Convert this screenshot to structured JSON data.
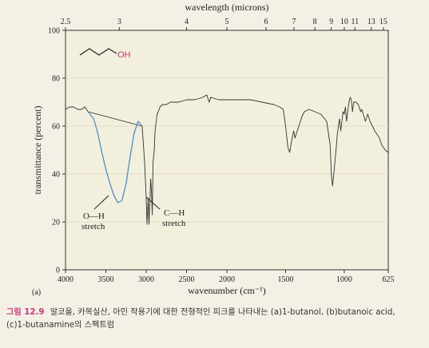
{
  "chart_data": {
    "type": "line",
    "top_axis_label": "wavelength (microns)",
    "xlabel": "wavenumber (cm⁻¹)",
    "ylabel": "transmittance (percent)",
    "panel_label": "(a)",
    "molecule_label": "OH",
    "x_ticks": [
      4000,
      3500,
      3000,
      2500,
      2000,
      1500,
      1000,
      625
    ],
    "x_tick_labels": [
      "4000",
      "3500",
      "3000",
      "2500",
      "2000",
      "1500",
      "1000",
      "625"
    ],
    "top_ticks": [
      2.5,
      3,
      4,
      5,
      6,
      7,
      8,
      9,
      10,
      11,
      13,
      15
    ],
    "top_tick_labels": [
      "2.5",
      "3",
      "4",
      "5",
      "6",
      "7",
      "8",
      "9",
      "10",
      "11",
      "13",
      "15"
    ],
    "y_ticks": [
      0,
      20,
      40,
      60,
      80,
      100
    ],
    "y_tick_labels": [
      "0",
      "20",
      "40",
      "60",
      "80",
      "100"
    ],
    "xlim": [
      4000,
      625
    ],
    "ylim": [
      0,
      100
    ],
    "annotations": [
      {
        "lines": [
          "O—H",
          "stretch"
        ],
        "x": 3350,
        "y": 28
      },
      {
        "lines": [
          "C—H",
          "stretch"
        ],
        "x": 2920,
        "y": 27
      }
    ],
    "series": [
      {
        "color": "#4a8fcf",
        "x": [
          3720,
          3650,
          3600,
          3550,
          3500,
          3450,
          3400,
          3350,
          3300,
          3250,
          3200,
          3150,
          3100,
          3050
        ],
        "y": [
          66,
          63,
          57,
          49,
          42,
          36,
          31,
          28,
          29,
          36,
          47,
          57,
          62,
          60
        ]
      },
      {
        "color": "#333333",
        "x": [
          4000,
          3950,
          3900,
          3850,
          3800,
          3760,
          3720,
          3050,
          3020,
          3000,
          2990,
          2975,
          2965,
          2955,
          2945,
          2935,
          2925,
          2915,
          2900,
          2890,
          2875,
          2865,
          2850,
          2830,
          2800,
          2750,
          2700,
          2600,
          2500,
          2400,
          2300,
          2250,
          2230,
          2220,
          2200,
          2100,
          2000,
          1900,
          1800,
          1700,
          1600,
          1550,
          1520,
          1500,
          1480,
          1465,
          1455,
          1440,
          1430,
          1420,
          1400,
          1380,
          1360,
          1340,
          1300,
          1250,
          1200,
          1150,
          1120,
          1110,
          1100,
          1085,
          1070,
          1060,
          1050,
          1040,
          1030,
          1020,
          1010,
          1000,
          990,
          980,
          970,
          960,
          950,
          940,
          930,
          920,
          900,
          880,
          860,
          850,
          820,
          800,
          780,
          760,
          740,
          700,
          680,
          650,
          625
        ],
        "y": [
          67,
          68,
          68,
          67,
          67,
          68,
          66,
          60,
          45,
          30,
          19,
          30,
          19,
          28,
          38,
          33,
          23,
          45,
          50,
          58,
          62,
          65,
          66,
          68,
          69,
          69,
          70,
          70,
          71,
          71,
          72,
          73,
          71,
          70,
          72,
          71,
          71,
          71,
          71,
          70,
          69,
          68,
          67,
          60,
          51,
          49,
          52,
          56,
          58,
          55,
          58,
          61,
          64,
          66,
          67,
          66,
          65,
          62,
          52,
          40,
          35,
          42,
          50,
          56,
          60,
          63,
          58,
          62,
          66,
          65,
          68,
          62,
          66,
          70,
          72,
          71,
          66,
          70,
          70,
          69,
          66,
          67,
          62,
          65,
          62,
          60,
          58,
          55,
          52,
          50,
          49
        ]
      }
    ]
  },
  "caption": {
    "figure_number": "그림 12.9",
    "line1": "알코올, 카복실산, 아민 작용기에 대한 전형적인 피크를 나타내는 (a)1-butanol, (b)butanoic acid,",
    "line2": "(c)1-butanamine의 스펙트럼"
  }
}
